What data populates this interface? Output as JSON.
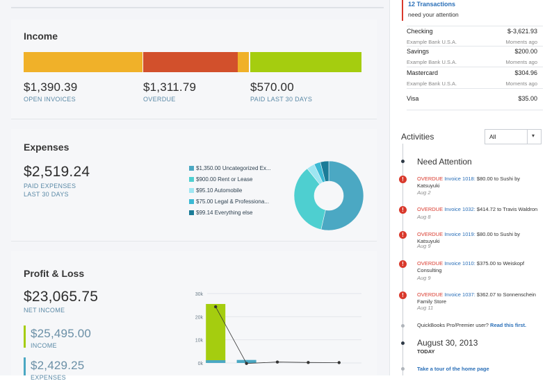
{
  "income": {
    "title": "Income",
    "open_amount": "$1,390.39",
    "open_label": "OPEN INVOICES",
    "overdue_amount": "$1,311.79",
    "overdue_label": "OVERDUE",
    "paid_amount": "$570.00",
    "paid_label": "PAID LAST 30 DAYS",
    "colors": {
      "open": "#f0b129",
      "overdue": "#d2502c",
      "paid": "#a5cd0f"
    }
  },
  "expenses": {
    "title": "Expenses",
    "amount": "$2,519.24",
    "label_line1": "PAID EXPENSES",
    "label_line2": "LAST 30 DAYS",
    "legend": [
      {
        "label": "$1,350.00 Uncategorized Ex...",
        "color": "#4ba8c3",
        "value": 1350.0
      },
      {
        "label": "$900.00 Rent or Lease",
        "color": "#4ecfd0",
        "value": 900.0
      },
      {
        "label": "$95.10 Automobile",
        "color": "#9ee6f2",
        "value": 95.1
      },
      {
        "label": "$75.00 Legal & Professiona...",
        "color": "#3bb9d4",
        "value": 75.0
      },
      {
        "label": "$99.14 Everything else",
        "color": "#1b7c98",
        "value": 99.14
      }
    ]
  },
  "pnl": {
    "title": "Profit & Loss",
    "net_amount": "$23,065.75",
    "net_label": "NET INCOME",
    "income_amount": "$25,495.00",
    "income_label": "INCOME",
    "expenses_amount": "$2,429.25",
    "expenses_label": "EXPENSES",
    "income_color": "#a5cd0f",
    "expenses_color": "#4ba8c3"
  },
  "chart_data": {
    "type": "bar",
    "categories": [
      "",
      "",
      "",
      "",
      ""
    ],
    "series": [
      {
        "name": "INCOME",
        "values": [
          25495,
          0,
          0,
          0,
          0
        ]
      },
      {
        "name": "EXPENSES",
        "values": [
          1200,
          1300,
          0,
          0,
          0
        ]
      },
      {
        "name": "NET INCOME",
        "values": [
          24295,
          -200,
          400,
          200,
          150
        ]
      }
    ],
    "yticks": [
      "30k",
      "20k",
      "10k",
      "0k"
    ],
    "ylim": [
      0,
      30000
    ]
  },
  "transactions": {
    "count_label": "12 Transactions",
    "subtitle": "need your attention",
    "accounts": [
      {
        "name": "Checking",
        "amount": "$-3,621.93",
        "bank": "Example Bank U.S.A.",
        "time": "Moments ago"
      },
      {
        "name": "Savings",
        "amount": "$200.00",
        "bank": "Example Bank U.S.A.",
        "time": "Moments ago"
      },
      {
        "name": "Mastercard",
        "amount": "$304.96",
        "bank": "Example Bank U.S.A.",
        "time": "Moments ago"
      },
      {
        "name": "Visa",
        "amount": "$35.00",
        "bank": "",
        "time": ""
      }
    ]
  },
  "activities": {
    "title": "Activities",
    "filter_value": "All",
    "need_attention": "Need Attention",
    "items": [
      {
        "status": "OVERDUE",
        "invoice": "Invoice 1018:",
        "rest": "$80.00 to Sushi by Katsuyuki",
        "date": "Aug 2"
      },
      {
        "status": "OVERDUE",
        "invoice": "Invoice 1032:",
        "rest": "$414.72 to Travis Waldron",
        "date": "Aug 8"
      },
      {
        "status": "OVERDUE",
        "invoice": "Invoice 1019:",
        "rest": "$80.00 to Sushi by Katsuyuki",
        "date": "Aug 9"
      },
      {
        "status": "OVERDUE",
        "invoice": "Invoice 1010:",
        "rest": "$375.00 to Weiskopf Consulting",
        "date": "Aug 9"
      },
      {
        "status": "OVERDUE",
        "invoice": "Invoice 1037:",
        "rest": "$362.07 to Sonnenschein Family Store",
        "date": "Aug 11"
      }
    ],
    "qb_text": "QuickBooks Pro/Premier user?",
    "qb_link": "Read this first.",
    "date_heading": "August 30, 2013",
    "today_label": "TODAY",
    "tour_link": "Take a tour of the home page"
  }
}
